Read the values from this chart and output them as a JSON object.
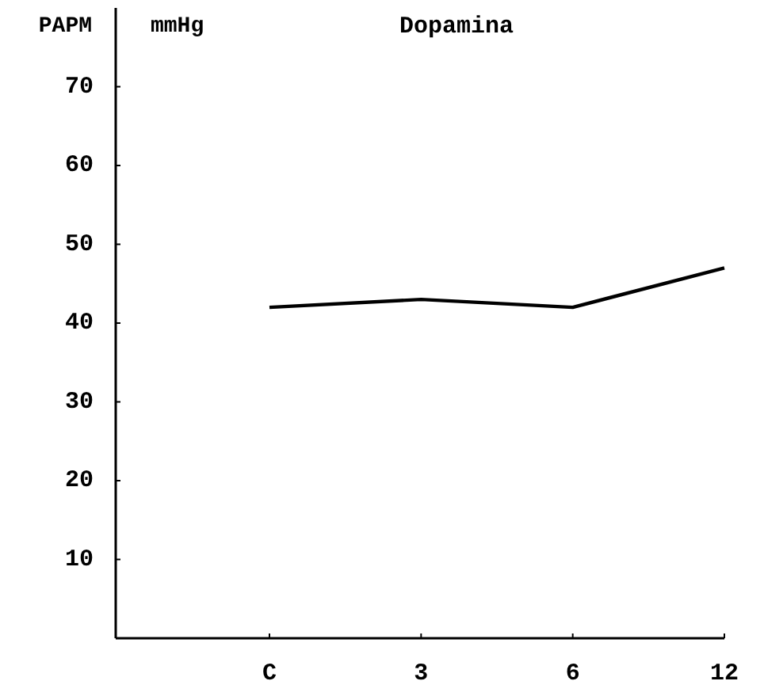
{
  "chart_data": {
    "type": "line",
    "title": "Dopamina",
    "ylabel": "PAPM",
    "annotations": [
      "mmHg"
    ],
    "categories": [
      "C",
      "3",
      "6",
      "12"
    ],
    "series": [
      {
        "color": "#000000",
        "values": [
          42,
          43,
          42,
          47
        ]
      }
    ],
    "ylim": [
      0,
      80
    ],
    "yticks": [
      10,
      20,
      30,
      40,
      50,
      60,
      70
    ],
    "grid": false,
    "marker": "none",
    "line_style": "solid"
  }
}
